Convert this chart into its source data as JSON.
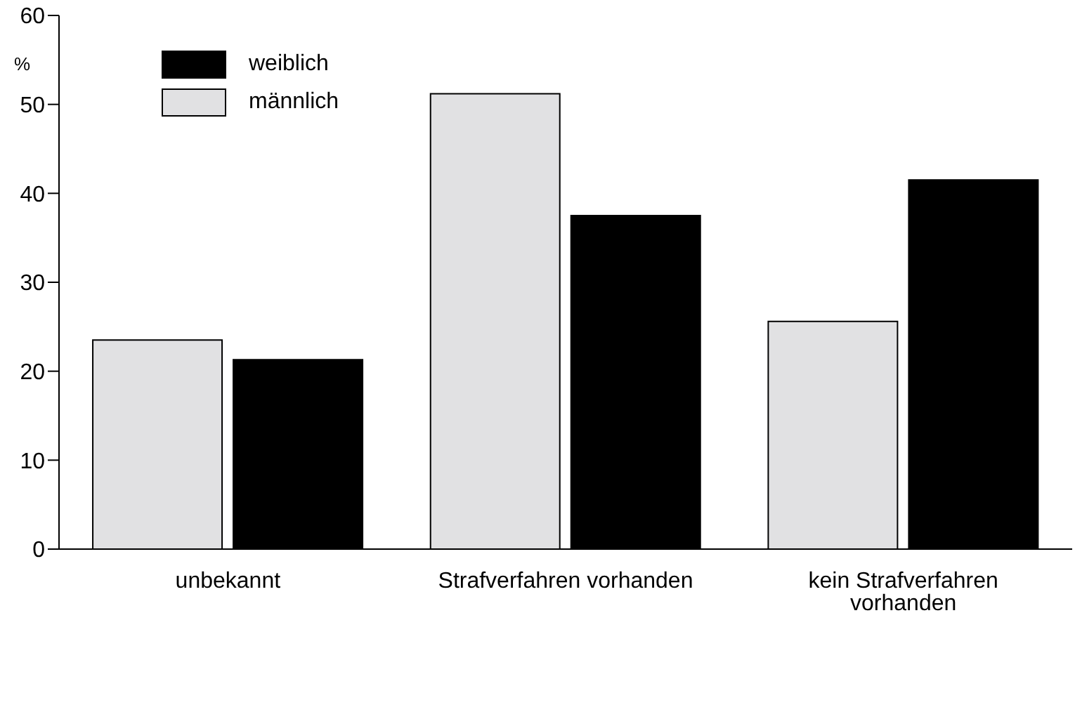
{
  "chart_data": {
    "type": "bar",
    "ylabel": "%",
    "categories": [
      "unbekannt",
      "Strafverfahren vorhanden",
      "kein Strafverfahren vorhanden"
    ],
    "series": [
      {
        "name": "männlich",
        "color": "#e1e1e3",
        "values": [
          23.5,
          51.2,
          25.6
        ]
      },
      {
        "name": "weiblich",
        "color": "#000000",
        "values": [
          21.3,
          37.5,
          41.5
        ]
      }
    ],
    "ylim": [
      0,
      60
    ],
    "yticks": [
      0,
      10,
      20,
      30,
      40,
      50,
      60
    ],
    "grid": false,
    "legend": "top left"
  }
}
